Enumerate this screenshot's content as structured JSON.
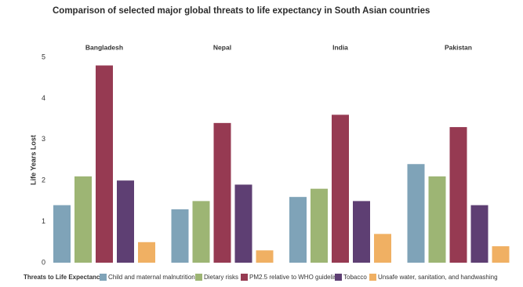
{
  "chart_data": {
    "type": "bar",
    "title": "Comparison of selected major global threats to life expectancy in South Asian countries",
    "y_label": "Life Years Lost",
    "legend_title": "Threats to Life Expectancy",
    "categories": [
      "Bangladesh",
      "Nepal",
      "India",
      "Pakistan"
    ],
    "series": [
      {
        "name": "Child and maternal malnutrition",
        "color": "#7fa3b8",
        "values": [
          1.4,
          1.3,
          1.6,
          2.4
        ]
      },
      {
        "name": "Dietary risks",
        "color": "#9db574",
        "values": [
          2.1,
          1.5,
          1.8,
          2.1
        ]
      },
      {
        "name": "PM2.5 relative to WHO guideline",
        "color": "#963a52",
        "values": [
          4.8,
          3.4,
          3.6,
          3.3
        ]
      },
      {
        "name": "Tobacco",
        "color": "#5e3f73",
        "values": [
          2.0,
          1.9,
          1.5,
          1.4
        ]
      },
      {
        "name": "Unsafe water, sanitation, and handwashing",
        "color": "#f0b063",
        "values": [
          0.5,
          0.3,
          0.7,
          0.4
        ]
      }
    ],
    "ylim": [
      0,
      5
    ],
    "yticks": [
      0,
      1,
      2,
      3,
      4,
      5
    ],
    "grid": false
  }
}
